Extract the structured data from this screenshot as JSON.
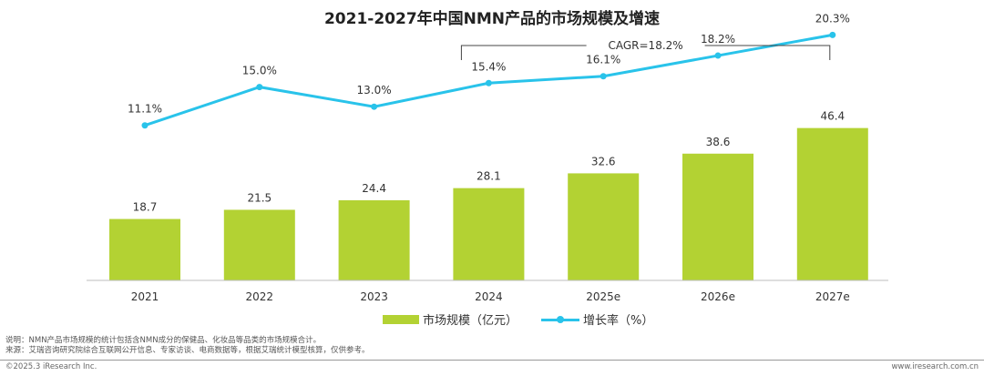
{
  "chart_data": {
    "type": "bar",
    "title": "2021-2027年中国NMN产品的市场规模及增速",
    "categories": [
      "2021",
      "2022",
      "2023",
      "2024",
      "2025e",
      "2026e",
      "2027e"
    ],
    "series": [
      {
        "name": "市场规模（亿元）",
        "type": "bar",
        "values": [
          18.7,
          21.5,
          24.4,
          28.1,
          32.6,
          38.6,
          46.4
        ],
        "color": "#b3d233"
      },
      {
        "name": "增长率（%）",
        "type": "line",
        "values": [
          11.1,
          15.0,
          13.0,
          15.4,
          16.1,
          18.2,
          20.3
        ],
        "color": "#29c3ea"
      }
    ],
    "value_labels": [
      "18.7",
      "21.5",
      "24.4",
      "28.1",
      "32.6",
      "38.6",
      "46.4"
    ],
    "rate_labels": [
      "11.1%",
      "15.0%",
      "13.0%",
      "15.4%",
      "16.1%",
      "18.2%",
      "20.3%"
    ],
    "annotation": {
      "text": "CAGR=18.2%",
      "from_category": "2024",
      "to_category": "2027e"
    },
    "legend_position": "bottom",
    "grid": false
  },
  "notes": {
    "line1": "说明：NMN产品市场规模的统计包括含NMN成分的保健品、化妆品等品类的市场规模合计。",
    "line2": "来源：艾瑞咨询研究院综合互联网公开信息、专家访谈、电商数据等，根据艾瑞统计模型核算，仅供参考。"
  },
  "footer": {
    "copyright": "©2025.3 iResearch Inc.",
    "website": "www.iresearch.com.cn"
  }
}
